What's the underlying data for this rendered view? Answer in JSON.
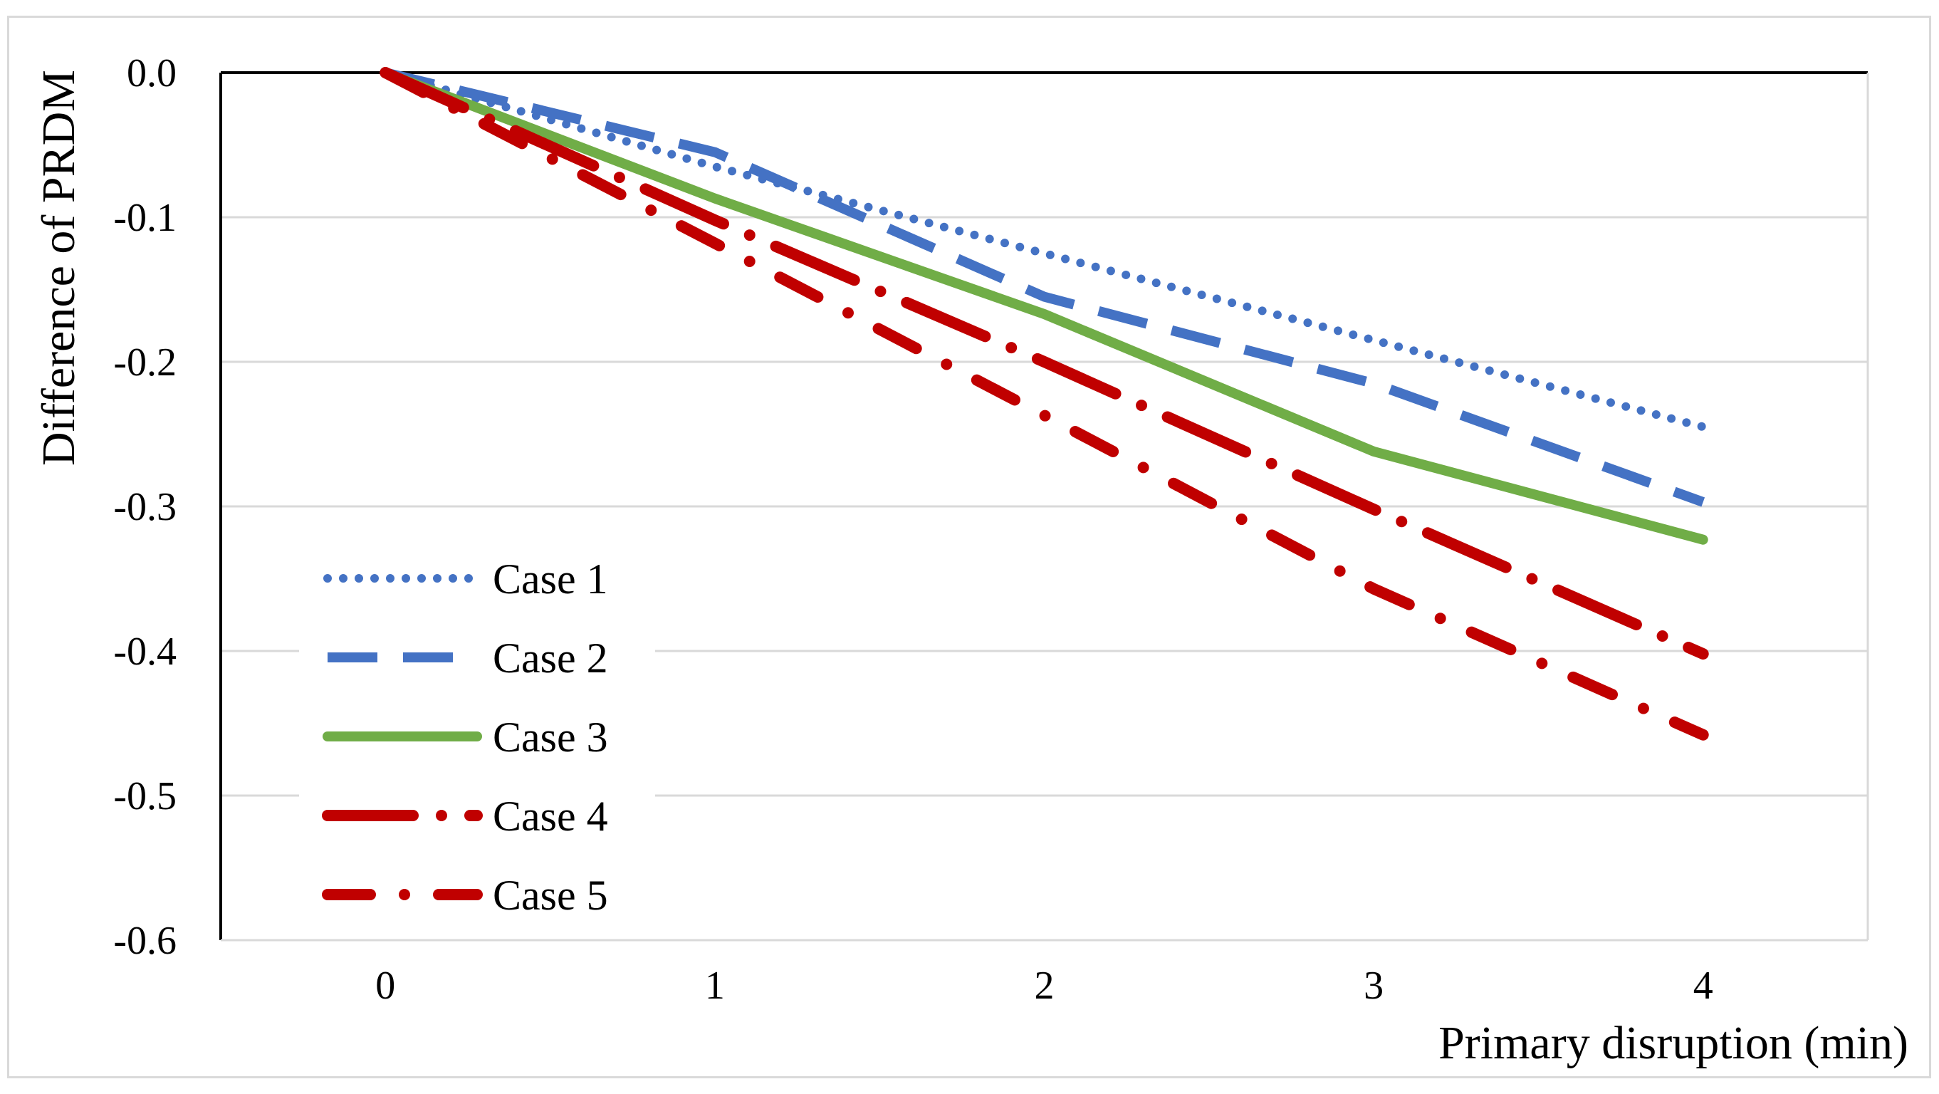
{
  "chart_data": {
    "type": "line",
    "title": "",
    "xlabel": "Primary disruption (min)",
    "ylabel": "Difference of PRDM",
    "x": [
      0,
      1,
      2,
      3,
      4
    ],
    "x_tick_labels": [
      "0",
      "1",
      "2",
      "3",
      "4"
    ],
    "xlim": [
      -0.5,
      4.5
    ],
    "ylim": [
      -0.6,
      0.0
    ],
    "y_ticks": [
      0.0,
      -0.1,
      -0.2,
      -0.3,
      -0.4,
      -0.5,
      -0.6
    ],
    "y_tick_labels": [
      "0.0",
      "-0.1",
      "-0.2",
      "-0.3",
      "-0.4",
      "-0.5",
      "-0.6"
    ],
    "grid": true,
    "legend_position": "bottom-left",
    "series": [
      {
        "name": "Case 1",
        "color": "#4472c4",
        "style": "dotted",
        "values": [
          0.0,
          -0.065,
          -0.125,
          -0.185,
          -0.245
        ]
      },
      {
        "name": "Case 2",
        "color": "#4472c4",
        "style": "dashed",
        "values": [
          0.0,
          -0.055,
          -0.155,
          -0.215,
          -0.297
        ]
      },
      {
        "name": "Case 3",
        "color": "#70ad47",
        "style": "solid",
        "values": [
          0.0,
          -0.087,
          -0.167,
          -0.262,
          -0.323
        ]
      },
      {
        "name": "Case 4",
        "color": "#c00000",
        "style": "long-dash-dot",
        "values": [
          0.0,
          -0.102,
          -0.2,
          -0.302,
          -0.402
        ]
      },
      {
        "name": "Case 5",
        "color": "#c00000",
        "style": "dash-dot",
        "values": [
          0.0,
          -0.118,
          -0.237,
          -0.357,
          -0.458
        ]
      }
    ]
  }
}
